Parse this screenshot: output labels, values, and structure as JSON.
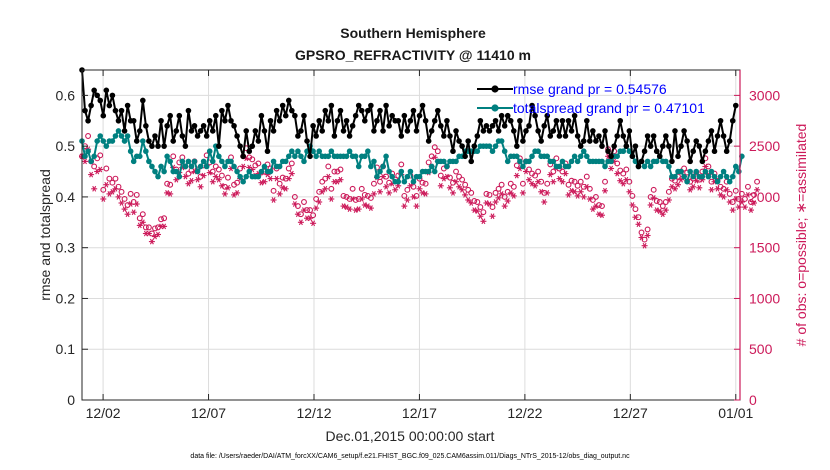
{
  "chart_data": {
    "type": "line",
    "title_line1": "Southern Hemisphere",
    "title_line2": "GPSRO_REFRACTIVITY @ 11410 m",
    "xlabel": "Dec.01,2015 00:00:00 start",
    "ylabel": "rmse and totalspread",
    "y2label": "# of obs: o=possible; ∗=assimilated",
    "footnote": "data file: /Users/raeder/DAI/ATM_forcXX/CAM6_setup/f.e21.FHIST_BGC.f09_025.CAM6assim.011/Diags_NTrS_2015-12/obs_diag_output.nc",
    "xlim": [
      0,
      31.2
    ],
    "ylim": [
      0,
      0.65
    ],
    "y2lim": [
      0,
      3250
    ],
    "x_ticks": [
      1,
      6,
      11,
      16,
      21,
      26,
      31
    ],
    "x_tick_labels": [
      "12/02",
      "12/07",
      "12/12",
      "12/17",
      "12/22",
      "12/27",
      "01/01"
    ],
    "y_ticks": [
      0,
      0.1,
      0.2,
      0.3,
      0.4,
      0.5,
      0.6
    ],
    "y_tick_labels": [
      "0",
      "0.1",
      "0.2",
      "0.3",
      "0.4",
      "0.5",
      "0.6"
    ],
    "y2_ticks": [
      0,
      500,
      1000,
      1500,
      2000,
      2500,
      3000
    ],
    "y2_tick_labels": [
      "0",
      "500",
      "1000",
      "1500",
      "2000",
      "2500",
      "3000"
    ],
    "legend": [
      {
        "name": "rmse grand pr = 0.54576",
        "color": "#000000"
      },
      {
        "name": "totalspread grand pr = 0.47101",
        "color": "#008080"
      }
    ],
    "colors": {
      "rmse": "#000000",
      "spread": "#008080",
      "obs": "#cc1a5a"
    },
    "series": [
      {
        "name": "rmse",
        "values": [
          0.65,
          0.57,
          0.55,
          0.58,
          0.61,
          0.6,
          0.59,
          0.56,
          0.61,
          0.58,
          0.6,
          0.57,
          0.55,
          0.57,
          0.53,
          0.58,
          0.55,
          0.55,
          0.51,
          0.53,
          0.59,
          0.54,
          0.51,
          0.5,
          0.52,
          0.5,
          0.55,
          0.5,
          0.54,
          0.56,
          0.51,
          0.53,
          0.56,
          0.52,
          0.5,
          0.57,
          0.53,
          0.54,
          0.52,
          0.53,
          0.54,
          0.52,
          0.55,
          0.53,
          0.56,
          0.5,
          0.57,
          0.55,
          0.58,
          0.55,
          0.54,
          0.52,
          0.5,
          0.48,
          0.53,
          0.49,
          0.5,
          0.53,
          0.51,
          0.56,
          0.53,
          0.49,
          0.55,
          0.53,
          0.57,
          0.55,
          0.58,
          0.56,
          0.59,
          0.57,
          0.56,
          0.52,
          0.53,
          0.56,
          0.51,
          0.48,
          0.54,
          0.52,
          0.55,
          0.53,
          0.57,
          0.55,
          0.58,
          0.52,
          0.55,
          0.57,
          0.53,
          0.55,
          0.52,
          0.54,
          0.56,
          0.58,
          0.57,
          0.55,
          0.57,
          0.58,
          0.53,
          0.55,
          0.57,
          0.53,
          0.58,
          0.54,
          0.56,
          0.55,
          0.55,
          0.52,
          0.56,
          0.53,
          0.55,
          0.57,
          0.53,
          0.56,
          0.58,
          0.55,
          0.51,
          0.53,
          0.55,
          0.57,
          0.54,
          0.52,
          0.55,
          0.52,
          0.49,
          0.53,
          0.51,
          0.5,
          0.48,
          0.51,
          0.47,
          0.5,
          0.52,
          0.55,
          0.53,
          0.54,
          0.53,
          0.54,
          0.55,
          0.53,
          0.56,
          0.54,
          0.56,
          0.55,
          0.53,
          0.5,
          0.55,
          0.51,
          0.53,
          0.54,
          0.58,
          0.56,
          0.53,
          0.51,
          0.54,
          0.56,
          0.52,
          0.53,
          0.55,
          0.52,
          0.55,
          0.52,
          0.55,
          0.53,
          0.56,
          0.52,
          0.5,
          0.51,
          0.55,
          0.51,
          0.53,
          0.51,
          0.52,
          0.5,
          0.53,
          0.49,
          0.48,
          0.5,
          0.52,
          0.55,
          0.52,
          0.5,
          0.53,
          0.48,
          0.5,
          0.46,
          0.47,
          0.49,
          0.52,
          0.5,
          0.52,
          0.49,
          0.48,
          0.5,
          0.52,
          0.5,
          0.47,
          0.53,
          0.48,
          0.5,
          0.53,
          0.51,
          0.47,
          0.49,
          0.51,
          0.5,
          0.47,
          0.49,
          0.51,
          0.53,
          0.49,
          0.52,
          0.55,
          0.52,
          0.49,
          0.51,
          0.55,
          0.58
        ]
      },
      {
        "name": "totalspread",
        "values": [
          0.51,
          0.48,
          0.49,
          0.47,
          0.48,
          0.51,
          0.52,
          0.51,
          0.5,
          0.51,
          0.51,
          0.52,
          0.53,
          0.52,
          0.51,
          0.52,
          0.49,
          0.47,
          0.48,
          0.48,
          0.51,
          0.49,
          0.47,
          0.46,
          0.45,
          0.44,
          0.46,
          0.45,
          0.48,
          0.47,
          0.45,
          0.45,
          0.44,
          0.47,
          0.46,
          0.47,
          0.46,
          0.47,
          0.45,
          0.46,
          0.47,
          0.46,
          0.49,
          0.47,
          0.5,
          0.48,
          0.47,
          0.46,
          0.47,
          0.47,
          0.46,
          0.45,
          0.44,
          0.43,
          0.44,
          0.45,
          0.44,
          0.44,
          0.44,
          0.45,
          0.46,
          0.45,
          0.45,
          0.47,
          0.46,
          0.46,
          0.47,
          0.47,
          0.48,
          0.49,
          0.48,
          0.49,
          0.48,
          0.47,
          0.49,
          0.5,
          0.49,
          0.48,
          0.49,
          0.48,
          0.48,
          0.48,
          0.49,
          0.48,
          0.48,
          0.48,
          0.48,
          0.48,
          0.49,
          0.48,
          0.48,
          0.46,
          0.48,
          0.48,
          0.49,
          0.46,
          0.47,
          0.44,
          0.45,
          0.46,
          0.48,
          0.45,
          0.44,
          0.43,
          0.43,
          0.45,
          0.43,
          0.44,
          0.45,
          0.43,
          0.44,
          0.44,
          0.45,
          0.45,
          0.45,
          0.46,
          0.45,
          0.47,
          0.47,
          0.47,
          0.46,
          0.47,
          0.47,
          0.47,
          0.48,
          0.48,
          0.49,
          0.49,
          0.49,
          0.49,
          0.49,
          0.5,
          0.5,
          0.5,
          0.5,
          0.49,
          0.5,
          0.51,
          0.51,
          0.49,
          0.47,
          0.48,
          0.48,
          0.48,
          0.47,
          0.46,
          0.47,
          0.47,
          0.48,
          0.49,
          0.49,
          0.48,
          0.48,
          0.48,
          0.47,
          0.47,
          0.46,
          0.46,
          0.47,
          0.46,
          0.46,
          0.47,
          0.48,
          0.47,
          0.48,
          0.49,
          0.48,
          0.47,
          0.47,
          0.47,
          0.47,
          0.47,
          0.46,
          0.47,
          0.47,
          0.48,
          0.48,
          0.49,
          0.49,
          0.5,
          0.49,
          0.48,
          0.47,
          0.46,
          0.47,
          0.46,
          0.47,
          0.46,
          0.47,
          0.47,
          0.48,
          0.47,
          0.47,
          0.46,
          0.44,
          0.44,
          0.45,
          0.45,
          0.44,
          0.43,
          0.45,
          0.44,
          0.45,
          0.44,
          0.44,
          0.45,
          0.44,
          0.45,
          0.44,
          0.43,
          0.44,
          0.45,
          0.44,
          0.43,
          0.44,
          0.46,
          0.45,
          0.48
        ]
      },
      {
        "name": "obs possible",
        "values": [
          2400,
          2500,
          2600,
          2350,
          2300,
          2380,
          2410,
          2070,
          2280,
          2180,
          2140,
          2180,
          2100,
          2050,
          1980,
          1920,
          2030,
          1950,
          2020,
          1790,
          1830,
          1700,
          1700,
          1640,
          1690,
          1700,
          1780,
          1790,
          2130,
          2120,
          2400,
          2270,
          2340,
          2390,
          2300,
          2230,
          2260,
          2350,
          2270,
          2200,
          2310,
          2410,
          2340,
          2250,
          2300,
          2270,
          2210,
          2100,
          2190,
          2390,
          2120,
          2140,
          2280,
          2400,
          2480,
          2390,
          2370,
          2310,
          2330,
          2240,
          2250,
          2320,
          2280,
          2060,
          2280,
          2130,
          2190,
          2180,
          2280,
          2330,
          2000,
          1910,
          1830,
          1950,
          1870,
          1870,
          1820,
          1980,
          2050,
          2150,
          2180,
          2300,
          2080,
          2250,
          2250,
          2270,
          2010,
          2000,
          1980,
          2080,
          1970,
          1980,
          2080,
          2020,
          2010,
          1990,
          2130,
          2290,
          2150,
          2300,
          2200,
          2140,
          2230,
          2170,
          2210,
          2320,
          2010,
          2070,
          2210,
          2100,
          2010,
          2180,
          2140,
          2130,
          2340,
          2400,
          2490,
          2450,
          2210,
          2280,
          2300,
          2190,
          2140,
          2250,
          2200,
          2170,
          2120,
          2070,
          2040,
          1960,
          1950,
          1900,
          1850,
          2030,
          2020,
          1900,
          2040,
          2080,
          2120,
          2000,
          2050,
          2130,
          2100,
          2310,
          2380,
          2130,
          2350,
          2270,
          2230,
          2210,
          2250,
          2150,
          2040,
          2130,
          2320,
          2250,
          2380,
          2280,
          2250,
          2330,
          2120,
          2160,
          2150,
          2110,
          2150,
          2100,
          2200,
          2080,
          1970,
          2000,
          1920,
          1910,
          2150,
          2470,
          2380,
          2450,
          2330,
          2260,
          2230,
          2270,
          2150,
          2010,
          1880,
          1800,
          1650,
          1580,
          1680,
          2000,
          2070,
          1960,
          1950,
          1910,
          1950,
          2050,
          2180,
          2160,
          2200,
          2250,
          2280,
          2240,
          2150,
          2180,
          2240,
          2170,
          2250,
          2380,
          2300,
          2150,
          2230,
          2160,
          2100,
          2080,
          2150,
          2030,
          1950,
          2060,
          1980,
          2030,
          1980,
          2100,
          1950,
          2020,
          2150
        ]
      },
      {
        "name": "obs assimilated",
        "values": [
          2400,
          2350,
          2470,
          2220,
          2080,
          2250,
          2270,
          1980,
          2120,
          2030,
          2050,
          2080,
          2000,
          1940,
          1880,
          1830,
          1930,
          1850,
          1930,
          1720,
          1750,
          1640,
          1640,
          1560,
          1610,
          1630,
          1710,
          1710,
          2040,
          2030,
          2290,
          2170,
          2240,
          2290,
          2200,
          2130,
          2160,
          2250,
          2170,
          2100,
          2210,
          2310,
          2240,
          2150,
          2200,
          2170,
          2110,
          2030,
          2090,
          2280,
          2020,
          2040,
          2180,
          2300,
          2380,
          2290,
          2270,
          2210,
          2230,
          2140,
          2150,
          2220,
          2180,
          1970,
          2180,
          2030,
          2090,
          2080,
          2180,
          2230,
          1930,
          1830,
          1750,
          1870,
          1790,
          1790,
          1740,
          1890,
          1950,
          2050,
          2080,
          2200,
          1980,
          2150,
          2150,
          2170,
          1910,
          1900,
          1880,
          1980,
          1870,
          1880,
          1980,
          1920,
          1910,
          1890,
          2030,
          2190,
          2050,
          2200,
          2100,
          2040,
          2130,
          2070,
          2110,
          2220,
          1910,
          1970,
          2110,
          2000,
          1910,
          2080,
          2040,
          2030,
          2240,
          2300,
          2390,
          2350,
          2110,
          2180,
          2200,
          2090,
          2040,
          2150,
          2100,
          2070,
          2020,
          1970,
          1940,
          1870,
          1860,
          1810,
          1760,
          1940,
          1930,
          1810,
          1950,
          1990,
          2030,
          1910,
          1960,
          2040,
          2010,
          2210,
          2280,
          2040,
          2250,
          2170,
          2130,
          2110,
          2150,
          2050,
          1950,
          2040,
          2220,
          2150,
          2280,
          2180,
          2150,
          2230,
          2020,
          2060,
          2050,
          2010,
          2050,
          2000,
          2100,
          1980,
          1880,
          1910,
          1830,
          1820,
          2060,
          2400,
          2280,
          2350,
          2230,
          2160,
          2130,
          2170,
          2050,
          1920,
          1800,
          1730,
          1600,
          1520,
          1620,
          1920,
          1990,
          1870,
          1860,
          1830,
          1870,
          1970,
          2100,
          2080,
          2120,
          2170,
          2200,
          2160,
          2070,
          2100,
          2160,
          2090,
          2170,
          2300,
          2220,
          2070,
          2150,
          2080,
          2020,
          2000,
          2070,
          1950,
          1870,
          1980,
          1900,
          1950,
          1900,
          2020,
          1870,
          1940,
          2070
        ]
      }
    ]
  }
}
